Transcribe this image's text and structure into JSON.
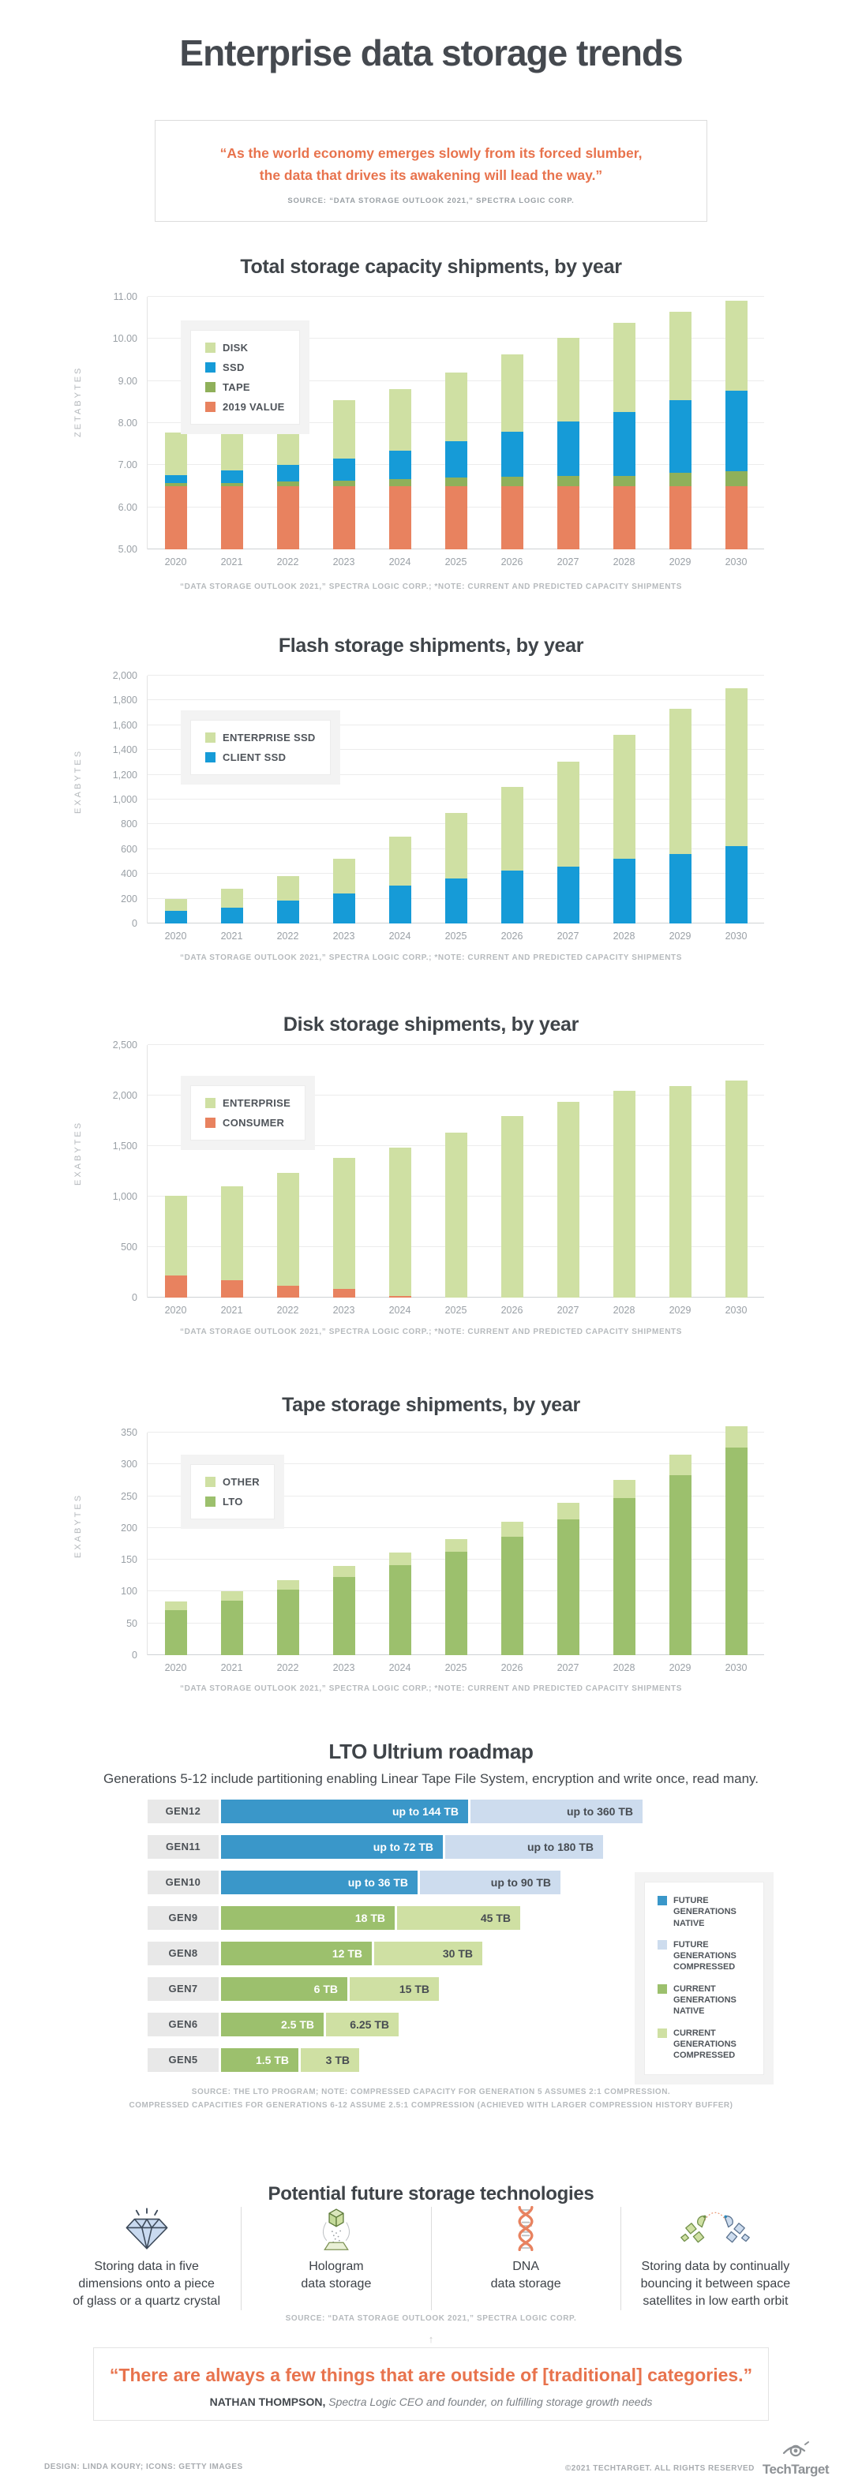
{
  "page": {
    "title": "Enterprise data storage trends",
    "footer_left": "DESIGN: LINDA KOURY; ICONS: GETTY IMAGES",
    "footer_right": "©2021 TECHTARGET. ALL RIGHTS RESERVED",
    "brand": "TechTarget"
  },
  "colors": {
    "light_green": "#cfe0a3",
    "green": "#9cc06d",
    "olive": "#8fb05a",
    "blue": "#169bd7",
    "orange": "#e8825f",
    "roadmap_blue": "#3a97c9",
    "light_blue": "#cddcee",
    "quote_orange": "#e8734d"
  },
  "top_quote": {
    "line1": "“As the world economy emerges slowly from its forced slumber,",
    "line2": "the data that drives its awakening will lead the way.”",
    "source": "SOURCE: “DATA STORAGE OUTLOOK 2021,”  SPECTRA LOGIC CORP."
  },
  "chart_data": [
    {
      "type": "bar",
      "stacked": true,
      "title": "Total storage capacity shipments, by year",
      "ylabel": "ZETABYTES",
      "ylim": [
        5,
        11
      ],
      "grid": true,
      "legend_position": "top-left",
      "categories": [
        "2020",
        "2021",
        "2022",
        "2023",
        "2024",
        "2025",
        "2026",
        "2027",
        "2028",
        "2029",
        "2030"
      ],
      "ticks": [
        {
          "v": 5,
          "label": "5.00"
        },
        {
          "v": 6,
          "label": "6.00"
        },
        {
          "v": 7,
          "label": "7.00"
        },
        {
          "v": 8,
          "label": "8.00"
        },
        {
          "v": 9,
          "label": "9.00"
        },
        {
          "v": 10,
          "label": "10.00"
        },
        {
          "v": 11,
          "label": "11.00"
        }
      ],
      "series": [
        {
          "name": "2019 VALUE",
          "color": "orange",
          "values": [
            1.5,
            1.5,
            1.5,
            1.5,
            1.5,
            1.5,
            1.5,
            1.5,
            1.5,
            1.5,
            1.5
          ]
        },
        {
          "name": "TAPE",
          "color": "olive",
          "values": [
            0.07,
            0.08,
            0.11,
            0.14,
            0.17,
            0.2,
            0.22,
            0.25,
            0.25,
            0.31,
            0.35
          ]
        },
        {
          "name": "SSD",
          "color": "blue",
          "values": [
            0.2,
            0.3,
            0.4,
            0.52,
            0.68,
            0.86,
            1.08,
            1.29,
            1.52,
            1.73,
            1.92
          ]
        },
        {
          "name": "DISK",
          "color": "light_green",
          "values": [
            1.0,
            1.13,
            1.23,
            1.39,
            1.46,
            1.64,
            1.84,
            1.99,
            2.11,
            2.11,
            2.13
          ]
        }
      ],
      "totals": [
        7.77,
        8.01,
        8.24,
        8.55,
        8.81,
        9.2,
        9.64,
        10.03,
        10.38,
        10.65,
        10.9
      ],
      "legend": [
        {
          "label": "DISK",
          "color": "light_green"
        },
        {
          "label": "SSD",
          "color": "blue"
        },
        {
          "label": "TAPE",
          "color": "olive"
        },
        {
          "label": "2019 VALUE",
          "color": "orange"
        }
      ],
      "source": "“DATA STORAGE OUTLOOK 2021,” SPECTRA LOGIC CORP.; *NOTE: CURRENT AND PREDICTED CAPACITY SHIPMENTS"
    },
    {
      "type": "bar",
      "stacked": true,
      "title": "Flash storage shipments, by year",
      "ylabel": "EXABYTES",
      "ylim": [
        0,
        2000
      ],
      "grid": true,
      "legend_position": "top-left",
      "categories": [
        "2020",
        "2021",
        "2022",
        "2023",
        "2024",
        "2025",
        "2026",
        "2027",
        "2028",
        "2029",
        "2030"
      ],
      "ticks": [
        {
          "v": 0,
          "label": "0"
        },
        {
          "v": 200,
          "label": "200"
        },
        {
          "v": 400,
          "label": "400"
        },
        {
          "v": 600,
          "label": "600"
        },
        {
          "v": 800,
          "label": "800"
        },
        {
          "v": 1000,
          "label": "1,000"
        },
        {
          "v": 1200,
          "label": "1,200"
        },
        {
          "v": 1400,
          "label": "1,400"
        },
        {
          "v": 1600,
          "label": "1,600"
        },
        {
          "v": 1800,
          "label": "1,800"
        },
        {
          "v": 2000,
          "label": "2,000"
        }
      ],
      "series": [
        {
          "name": "CLIENT SSD",
          "color": "blue",
          "values": [
            100,
            130,
            185,
            240,
            305,
            365,
            425,
            460,
            520,
            560,
            625
          ]
        },
        {
          "name": "ENTERPRISE SSD",
          "color": "light_green",
          "values": [
            100,
            150,
            200,
            285,
            395,
            525,
            680,
            845,
            1005,
            1170,
            1275
          ]
        }
      ],
      "totals": [
        200,
        280,
        385,
        525,
        700,
        890,
        1105,
        1305,
        1525,
        1730,
        1900
      ],
      "legend": [
        {
          "label": "ENTERPRISE SSD",
          "color": "light_green"
        },
        {
          "label": "CLIENT SSD",
          "color": "blue"
        }
      ],
      "source": "“DATA STORAGE OUTLOOK 2021,” SPECTRA LOGIC CORP.; *NOTE: CURRENT AND PREDICTED CAPACITY SHIPMENTS"
    },
    {
      "type": "bar",
      "stacked": true,
      "title": "Disk storage shipments, by year",
      "ylabel": "EXABYTES",
      "ylim": [
        0,
        2500
      ],
      "grid": true,
      "legend_position": "top-left",
      "categories": [
        "2020",
        "2021",
        "2022",
        "2023",
        "2024",
        "2025",
        "2026",
        "2027",
        "2028",
        "2029",
        "2030"
      ],
      "ticks": [
        {
          "v": 0,
          "label": "0"
        },
        {
          "v": 500,
          "label": "500"
        },
        {
          "v": 1000,
          "label": "1,000"
        },
        {
          "v": 1500,
          "label": "1,500"
        },
        {
          "v": 2000,
          "label": "2,000"
        },
        {
          "v": 2500,
          "label": "2,500"
        }
      ],
      "series": [
        {
          "name": "CONSUMER",
          "color": "orange",
          "values": [
            220,
            170,
            120,
            85,
            15,
            0,
            0,
            0,
            0,
            0,
            0
          ]
        },
        {
          "name": "ENTERPRISE",
          "color": "light_green",
          "values": [
            785,
            935,
            1115,
            1295,
            1470,
            1630,
            1795,
            1935,
            2050,
            2090,
            2150
          ]
        }
      ],
      "totals": [
        1005,
        1105,
        1235,
        1380,
        1485,
        1630,
        1795,
        1935,
        2050,
        2090,
        2150
      ],
      "legend": [
        {
          "label": "ENTERPRISE",
          "color": "light_green"
        },
        {
          "label": "CONSUMER",
          "color": "orange"
        }
      ],
      "source": "“DATA STORAGE OUTLOOK 2021,” SPECTRA LOGIC CORP.; *NOTE: CURRENT AND PREDICTED CAPACITY SHIPMENTS"
    },
    {
      "type": "bar",
      "stacked": true,
      "title": "Tape storage shipments, by year",
      "ylabel": "EXABYTES",
      "ylim": [
        0,
        350
      ],
      "grid": true,
      "legend_position": "top-left",
      "categories": [
        "2020",
        "2021",
        "2022",
        "2023",
        "2024",
        "2025",
        "2026",
        "2027",
        "2028",
        "2029",
        "2030"
      ],
      "ticks": [
        {
          "v": 0,
          "label": "0"
        },
        {
          "v": 50,
          "label": "50"
        },
        {
          "v": 100,
          "label": "100"
        },
        {
          "v": 150,
          "label": "150"
        },
        {
          "v": 200,
          "label": "200"
        },
        {
          "v": 250,
          "label": "250"
        },
        {
          "v": 300,
          "label": "300"
        },
        {
          "v": 350,
          "label": "350"
        }
      ],
      "series": [
        {
          "name": "LTO",
          "color": "green",
          "values": [
            71,
            86,
            103,
            123,
            141,
            163,
            186,
            214,
            247,
            283,
            326
          ]
        },
        {
          "name": "OTHER",
          "color": "light_green",
          "values": [
            14,
            14,
            15,
            17,
            20,
            20,
            24,
            26,
            28,
            32,
            34
          ]
        }
      ],
      "totals": [
        85,
        100,
        118,
        140,
        161,
        183,
        210,
        240,
        275,
        315,
        360
      ],
      "legend": [
        {
          "label": "OTHER",
          "color": "light_green"
        },
        {
          "label": "LTO",
          "color": "green"
        }
      ],
      "source": "“DATA STORAGE OUTLOOK 2021,” SPECTRA LOGIC CORP.; *NOTE: CURRENT AND PREDICTED CAPACITY SHIPMENTS"
    }
  ],
  "roadmap": {
    "title": "LTO Ultrium roadmap",
    "subtitle": "Generations 5-12 include partitioning enabling Linear Tape File System, encryption and write once, read many.",
    "rows": [
      {
        "gen": "GEN12",
        "kind": "future",
        "native_tb": 144,
        "compressed_tb": 360,
        "native_label": "up to 144 TB",
        "compressed_label": "up to 360 TB",
        "native_w": 313,
        "compressed_w": 218
      },
      {
        "gen": "GEN11",
        "kind": "future",
        "native_tb": 72,
        "compressed_tb": 180,
        "native_label": "up to 72 TB",
        "compressed_label": "up to 180 TB",
        "native_w": 281,
        "compressed_w": 200
      },
      {
        "gen": "GEN10",
        "kind": "future",
        "native_tb": 36,
        "compressed_tb": 90,
        "native_label": "up to 36 TB",
        "compressed_label": "up to 90 TB",
        "native_w": 249,
        "compressed_w": 178
      },
      {
        "gen": "GEN9",
        "kind": "current",
        "native_tb": 18,
        "compressed_tb": 45,
        "native_label": "18 TB",
        "compressed_label": "45 TB",
        "native_w": 220,
        "compressed_w": 156
      },
      {
        "gen": "GEN8",
        "kind": "current",
        "native_tb": 12,
        "compressed_tb": 30,
        "native_label": "12 TB",
        "compressed_label": "30 TB",
        "native_w": 191,
        "compressed_w": 137
      },
      {
        "gen": "GEN7",
        "kind": "current",
        "native_tb": 6,
        "compressed_tb": 15,
        "native_label": "6 TB",
        "compressed_label": "15 TB",
        "native_w": 160,
        "compressed_w": 113
      },
      {
        "gen": "GEN6",
        "kind": "current",
        "native_tb": 2.5,
        "compressed_tb": 6.25,
        "native_label": "2.5 TB",
        "compressed_label": "6.25 TB",
        "native_w": 130,
        "compressed_w": 92
      },
      {
        "gen": "GEN5",
        "kind": "current",
        "native_tb": 1.5,
        "compressed_tb": 3,
        "native_label": "1.5 TB",
        "compressed_label": "3 TB",
        "native_w": 98,
        "compressed_w": 74
      }
    ],
    "legend": [
      {
        "label": "FUTURE GENERATIONS NATIVE",
        "color": "roadmap_blue"
      },
      {
        "label": "FUTURE GENERATIONS COMPRESSED",
        "color": "light_blue"
      },
      {
        "label": "CURRENT GENERATIONS NATIVE",
        "color": "green"
      },
      {
        "label": "CURRENT GENERATIONS COMPRESSED",
        "color": "light_green"
      }
    ],
    "source_line1": "SOURCE: THE LTO PROGRAM; NOTE: COMPRESSED CAPACITY FOR GENERATION 5 ASSUMES 2:1 COMPRESSION.",
    "source_line2": "COMPRESSED CAPACITIES FOR GENERATIONS 6-12 ASSUME 2.5:1 COMPRESSION (ACHIEVED WITH LARGER COMPRESSION HISTORY BUFFER)"
  },
  "future_tech": {
    "title": "Potential future storage technologies",
    "items": [
      {
        "icon": "crystal-icon",
        "label": "Storing data in five\ndimensions onto a piece\nof glass or a quartz crystal"
      },
      {
        "icon": "hologram-icon",
        "label": "Hologram\ndata storage"
      },
      {
        "icon": "dna-icon",
        "label": "DNA\ndata storage"
      },
      {
        "icon": "satellites-icon",
        "label": "Storing data by continually\nbouncing it between space\nsatellites in low earth orbit"
      }
    ],
    "source": "SOURCE: “DATA STORAGE OUTLOOK 2021,” SPECTRA LOGIC CORP."
  },
  "bottom_quote": {
    "text": "“There are always a few things that are outside of [traditional] categories.”",
    "attribution_name": "NATHAN THOMPSON,",
    "attribution_rest": " Spectra Logic CEO and founder, on fulfilling storage growth needs"
  }
}
